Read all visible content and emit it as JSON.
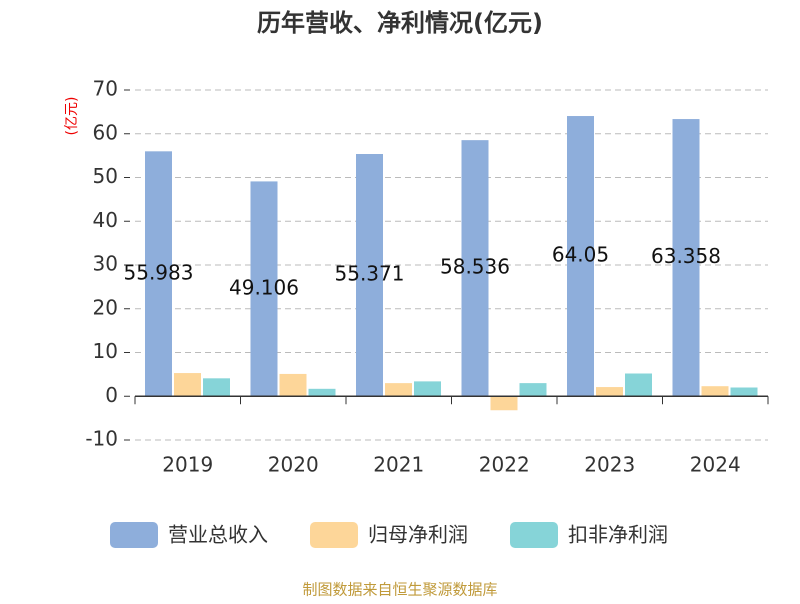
{
  "chart_data": {
    "type": "bar",
    "title": "历年营收、净利情况(亿元)",
    "ylabel": "(亿元)",
    "source": "制图数据来自恒生聚源数据库",
    "categories": [
      "2019",
      "2020",
      "2021",
      "2022",
      "2023",
      "2024"
    ],
    "series": [
      {
        "name": "营业总收入",
        "color": "#8eaedb",
        "values": [
          55.983,
          49.106,
          55.371,
          58.536,
          64.05,
          63.358
        ],
        "show_labels": true
      },
      {
        "name": "归母净利润",
        "color": "#fdd699",
        "values": [
          5.3,
          5.1,
          3.0,
          -3.2,
          2.1,
          2.3
        ]
      },
      {
        "name": "扣非净利润",
        "color": "#86d4d8",
        "values": [
          4.1,
          1.7,
          3.4,
          3.0,
          5.2,
          2.0
        ]
      }
    ],
    "ylim": [
      -10,
      70
    ],
    "yticks": [
      -10,
      0,
      10,
      20,
      30,
      40,
      50,
      60,
      70
    ],
    "grid": true,
    "legend": "bottom"
  }
}
